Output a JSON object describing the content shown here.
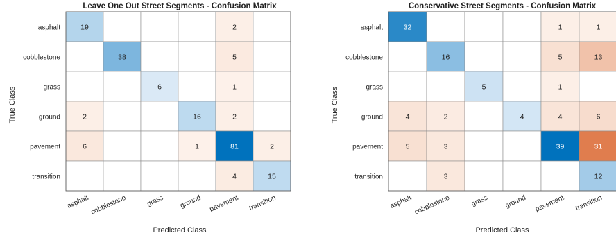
{
  "chart_data": [
    {
      "type": "heatmap",
      "title": "Leave One Out Street Segments - Confusion Matrix",
      "xlabel": "Predicted Class",
      "ylabel": "True Class",
      "x_categories": [
        "asphalt",
        "cobblestone",
        "grass",
        "ground",
        "pavement",
        "transition"
      ],
      "y_categories": [
        "asphalt",
        "cobblestone",
        "grass",
        "ground",
        "pavement",
        "transition"
      ],
      "matrix": [
        [
          19,
          null,
          null,
          null,
          2,
          null
        ],
        [
          null,
          38,
          null,
          null,
          5,
          null
        ],
        [
          null,
          null,
          6,
          null,
          1,
          null
        ],
        [
          2,
          null,
          null,
          16,
          2,
          null
        ],
        [
          6,
          null,
          null,
          1,
          81,
          2
        ],
        [
          null,
          null,
          null,
          null,
          4,
          15
        ]
      ]
    },
    {
      "type": "heatmap",
      "title": "Conservative Street Segments - Confusion Matrix",
      "xlabel": "Predicted Class",
      "ylabel": "True Class",
      "x_categories": [
        "asphalt",
        "cobblestone",
        "grass",
        "ground",
        "pavement",
        "transition"
      ],
      "y_categories": [
        "asphalt",
        "cobblestone",
        "grass",
        "ground",
        "pavement",
        "transition"
      ],
      "matrix": [
        [
          32,
          null,
          null,
          null,
          1,
          1
        ],
        [
          null,
          16,
          null,
          null,
          5,
          13
        ],
        [
          null,
          null,
          5,
          null,
          1,
          null
        ],
        [
          4,
          2,
          null,
          4,
          4,
          6
        ],
        [
          5,
          3,
          null,
          null,
          39,
          31
        ],
        [
          null,
          3,
          null,
          null,
          null,
          12
        ]
      ]
    }
  ]
}
